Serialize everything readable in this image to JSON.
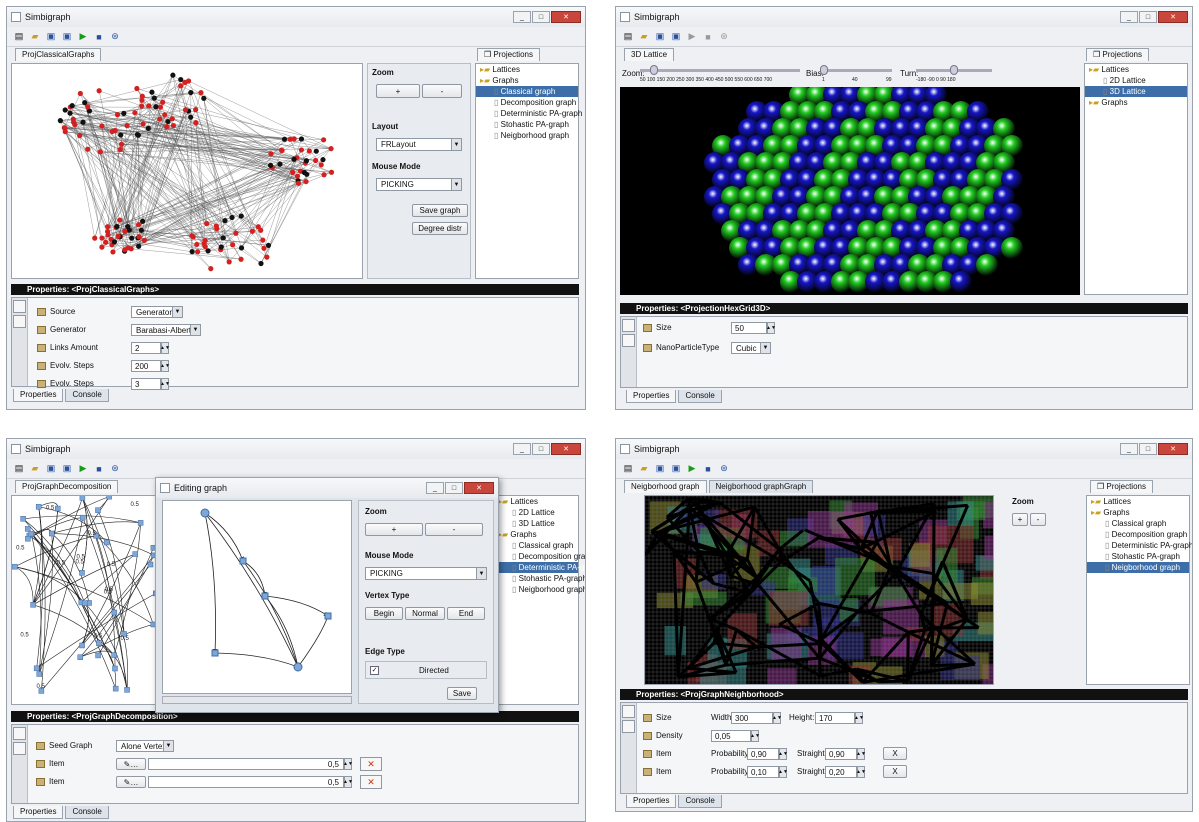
{
  "app_title": "Simbigraph",
  "panel1": {
    "tab": "ProjClassicalGraphs",
    "projections_tab": "Projections",
    "zoom": {
      "label": "Zoom",
      "plus": "+",
      "minus": "-"
    },
    "layout": {
      "label": "Layout",
      "value": "FRLayout"
    },
    "mouse_mode": {
      "label": "Mouse Mode",
      "value": "PICKING"
    },
    "save_graph": "Save graph",
    "degree_distr": "Degree distr",
    "tree": [
      "Lattices",
      "Graphs",
      "Classical graph",
      "Decomposition graph",
      "Deterministic PA-graph",
      "Stohastic PA-graph",
      "Neigborhood graph"
    ],
    "tree_selected": 2,
    "properties_title": "Properties: <ProjClassicalGraphs>",
    "props": [
      {
        "label": "Source",
        "value": "Generator"
      },
      {
        "label": "Generator",
        "value": "Barabasi-Albert"
      },
      {
        "label": "Links Amount",
        "value": "2"
      },
      {
        "label": "Evolv. Steps",
        "value": "200"
      },
      {
        "label": "Evolv. Steps",
        "value": "3"
      }
    ],
    "bottom_tabs": [
      "Properties",
      "Console"
    ]
  },
  "panel2": {
    "tab": "3D Lattice",
    "projections_tab": "Projections",
    "slider_labels": {
      "zoom": "Zoom:",
      "bias": "Bias:",
      "turn": "Turn:"
    },
    "zoom_ticks": "50 100 150 200 250 300 350 400 450 500 550 600 650 700",
    "bias_ticks": [
      "1",
      "40",
      "99"
    ],
    "turn_ticks": "-180 -90 0 90 180",
    "tree": [
      "Lattices",
      "2D Lattice",
      "3D Lattice",
      "Graphs"
    ],
    "tree_selected": 2,
    "properties_title": "Properties: <ProjectionHexGrid3D>",
    "props": [
      {
        "label": "Size",
        "value": "50"
      },
      {
        "label": "NanoParticleType",
        "value": "Cubic"
      }
    ],
    "bottom_tabs": [
      "Properties",
      "Console"
    ]
  },
  "panel3": {
    "tab": "ProjGraphDecomposition",
    "dialog_title": "Editing graph",
    "zoom": {
      "label": "Zoom",
      "plus": "+",
      "minus": "-"
    },
    "mouse_mode": {
      "label": "Mouse Mode",
      "value": "PICKING"
    },
    "vertex_type": {
      "label": "Vertex Type",
      "begin": "Begin",
      "normal": "Normal",
      "end": "End"
    },
    "edge_type": {
      "label": "Edge Type",
      "directed": "Directed"
    },
    "save": "Save",
    "tree": [
      "Lattices",
      "2D Lattice",
      "3D Lattice",
      "Graphs",
      "Classical graph",
      "Decomposition graph",
      "Deterministic PA-graph",
      "Stohastic PA-graph",
      "Neigborhood graph"
    ],
    "tree_selected": 6,
    "properties_title": "Properties: <ProjGraphDecomposition>",
    "seed_graph": {
      "label": "Seed Graph",
      "value": "Alone Vertex"
    },
    "items": [
      {
        "label": "Item",
        "value": "0,5"
      },
      {
        "label": "Item",
        "value": "0,5"
      }
    ],
    "edge_weight": "0.5",
    "bottom_tabs": [
      "Properties",
      "Console"
    ]
  },
  "panel4": {
    "tabs": [
      "Neigborhood graph",
      "Neigborhood graphGraph"
    ],
    "projections_tab": "Projections",
    "zoom": {
      "label": "Zoom",
      "plus": "+",
      "minus": "-"
    },
    "tree": [
      "Lattices",
      "Graphs",
      "Classical graph",
      "Decomposition graph",
      "Deterministic PA-graph",
      "Stohastic PA-graph",
      "Neigborhood graph"
    ],
    "tree_selected": 6,
    "properties_title": "Properties: <ProjGraphNeighborhood>",
    "size": {
      "label": "Size",
      "width_label": "Width:",
      "width": "300",
      "height_label": "Height:",
      "height": "170"
    },
    "density": {
      "label": "Density",
      "value": "0,05"
    },
    "items": [
      {
        "label": "Item",
        "prob_label": "Probability:",
        "prob": "0,90",
        "straight_label": "Straight:",
        "straight": "0,90",
        "x": "X"
      },
      {
        "label": "Item",
        "prob_label": "Probability:",
        "prob": "0,10",
        "straight_label": "Straight:",
        "straight": "0,20",
        "x": "X"
      }
    ],
    "bottom_tabs": [
      "Properties",
      "Console"
    ]
  },
  "colors": {
    "selection": "#3d6ea8",
    "red_node": "#d42020",
    "green_sphere": "#22cc22",
    "blue_sphere": "#1616c8"
  }
}
